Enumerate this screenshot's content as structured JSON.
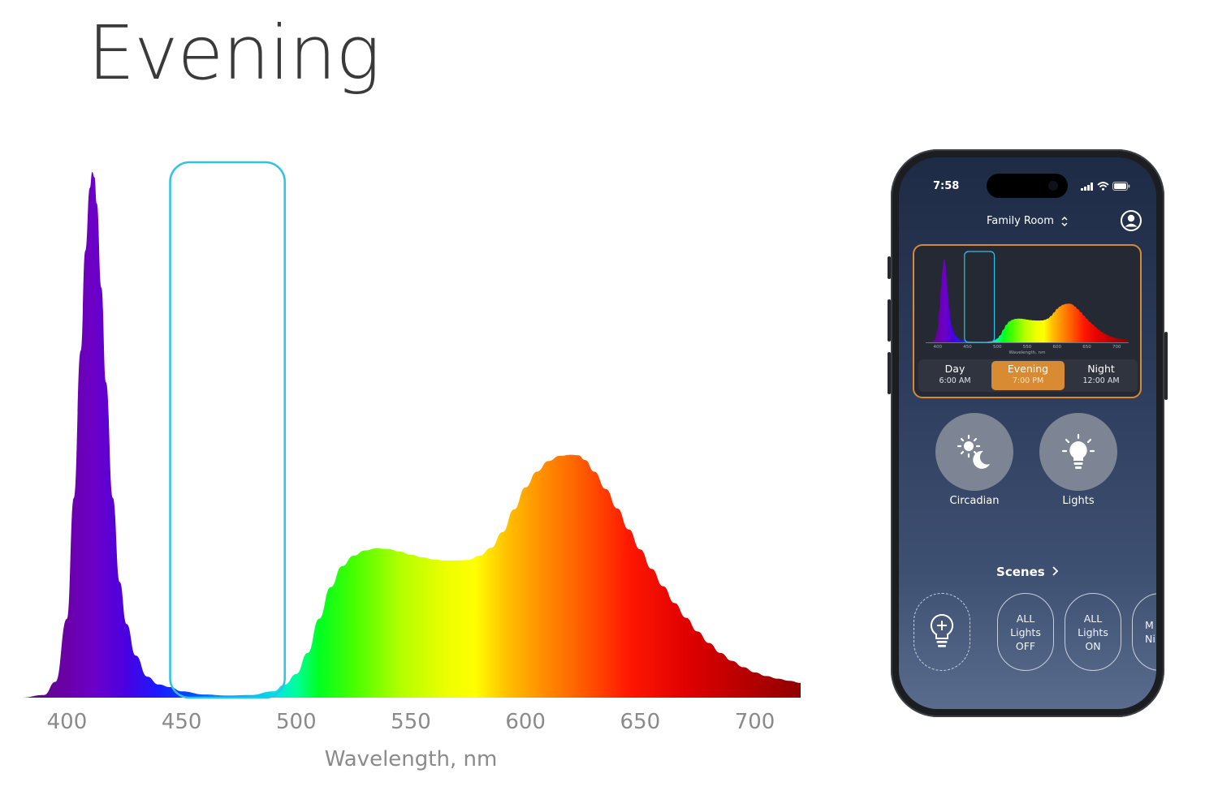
{
  "page": {
    "title": "Evening"
  },
  "chart_data": {
    "type": "area",
    "title": "",
    "xlabel": "Wavelength, nm",
    "ylabel": "",
    "xlim": [
      380,
      720
    ],
    "ylim": [
      0,
      1
    ],
    "xticks": [
      "400",
      "450",
      "500",
      "550",
      "600",
      "650",
      "700"
    ],
    "series": [
      {
        "x": [
          380,
          390,
          395,
          400,
          403,
          406,
          408,
          410,
          411,
          412,
          413,
          415,
          417,
          420,
          423,
          426,
          430,
          435,
          440,
          445,
          450,
          460,
          470,
          480,
          490,
          495,
          500,
          505,
          510,
          515,
          520,
          525,
          530,
          535,
          540,
          545,
          550,
          555,
          560,
          565,
          570,
          575,
          580,
          585,
          590,
          595,
          600,
          605,
          610,
          615,
          620,
          623,
          626,
          630,
          635,
          640,
          645,
          650,
          655,
          660,
          665,
          670,
          675,
          680,
          685,
          690,
          695,
          700,
          705,
          710,
          715,
          720
        ],
        "y": [
          0.0,
          0.005,
          0.03,
          0.15,
          0.38,
          0.66,
          0.85,
          0.97,
          1.0,
          0.99,
          0.94,
          0.78,
          0.6,
          0.38,
          0.22,
          0.14,
          0.08,
          0.04,
          0.025,
          0.02,
          0.012,
          0.006,
          0.004,
          0.005,
          0.012,
          0.025,
          0.045,
          0.085,
          0.15,
          0.21,
          0.25,
          0.27,
          0.28,
          0.284,
          0.283,
          0.278,
          0.272,
          0.267,
          0.263,
          0.261,
          0.261,
          0.262,
          0.27,
          0.285,
          0.315,
          0.358,
          0.4,
          0.43,
          0.45,
          0.46,
          0.462,
          0.461,
          0.452,
          0.43,
          0.397,
          0.36,
          0.32,
          0.282,
          0.245,
          0.212,
          0.18,
          0.152,
          0.126,
          0.104,
          0.085,
          0.07,
          0.058,
          0.048,
          0.041,
          0.036,
          0.032,
          0.028
        ]
      }
    ],
    "highlight_band": {
      "from": 445,
      "to": 495,
      "color": "#2ec2e6"
    },
    "grid": false,
    "legend": "none"
  },
  "phone": {
    "status": {
      "time": "7:58"
    },
    "header": {
      "room": "Family Room"
    },
    "mini_chart": {
      "xticks": [
        "400",
        "450",
        "500",
        "550",
        "600",
        "650",
        "700"
      ],
      "xlabel": "Wavelength, nm"
    },
    "time_of_day": [
      {
        "name": "Day",
        "time": "6:00 AM",
        "active": false
      },
      {
        "name": "Evening",
        "time": "7:00 PM",
        "active": true
      },
      {
        "name": "Night",
        "time": "12:00 AM",
        "active": false
      }
    ],
    "controls": {
      "circadian_label": "Circadian",
      "lights_label": "Lights"
    },
    "scenes": {
      "title": "Scenes",
      "items": [
        {
          "line1": "ALL",
          "line2": "Lights",
          "line3": "OFF"
        },
        {
          "line1": "ALL",
          "line2": "Lights",
          "line3": "ON"
        },
        {
          "line1": "M",
          "line2": "Ni"
        }
      ]
    },
    "colors": {
      "accent": "#d98b34",
      "card_border": "#d58a33",
      "band": "#2ec2e6"
    },
    "icons": [
      "sun-moon-icon",
      "bulb-icon",
      "add-bulb-icon",
      "profile-icon",
      "chevron-updown-icon",
      "chevron-right-icon",
      "signal-icon",
      "wifi-icon",
      "battery-icon"
    ]
  }
}
